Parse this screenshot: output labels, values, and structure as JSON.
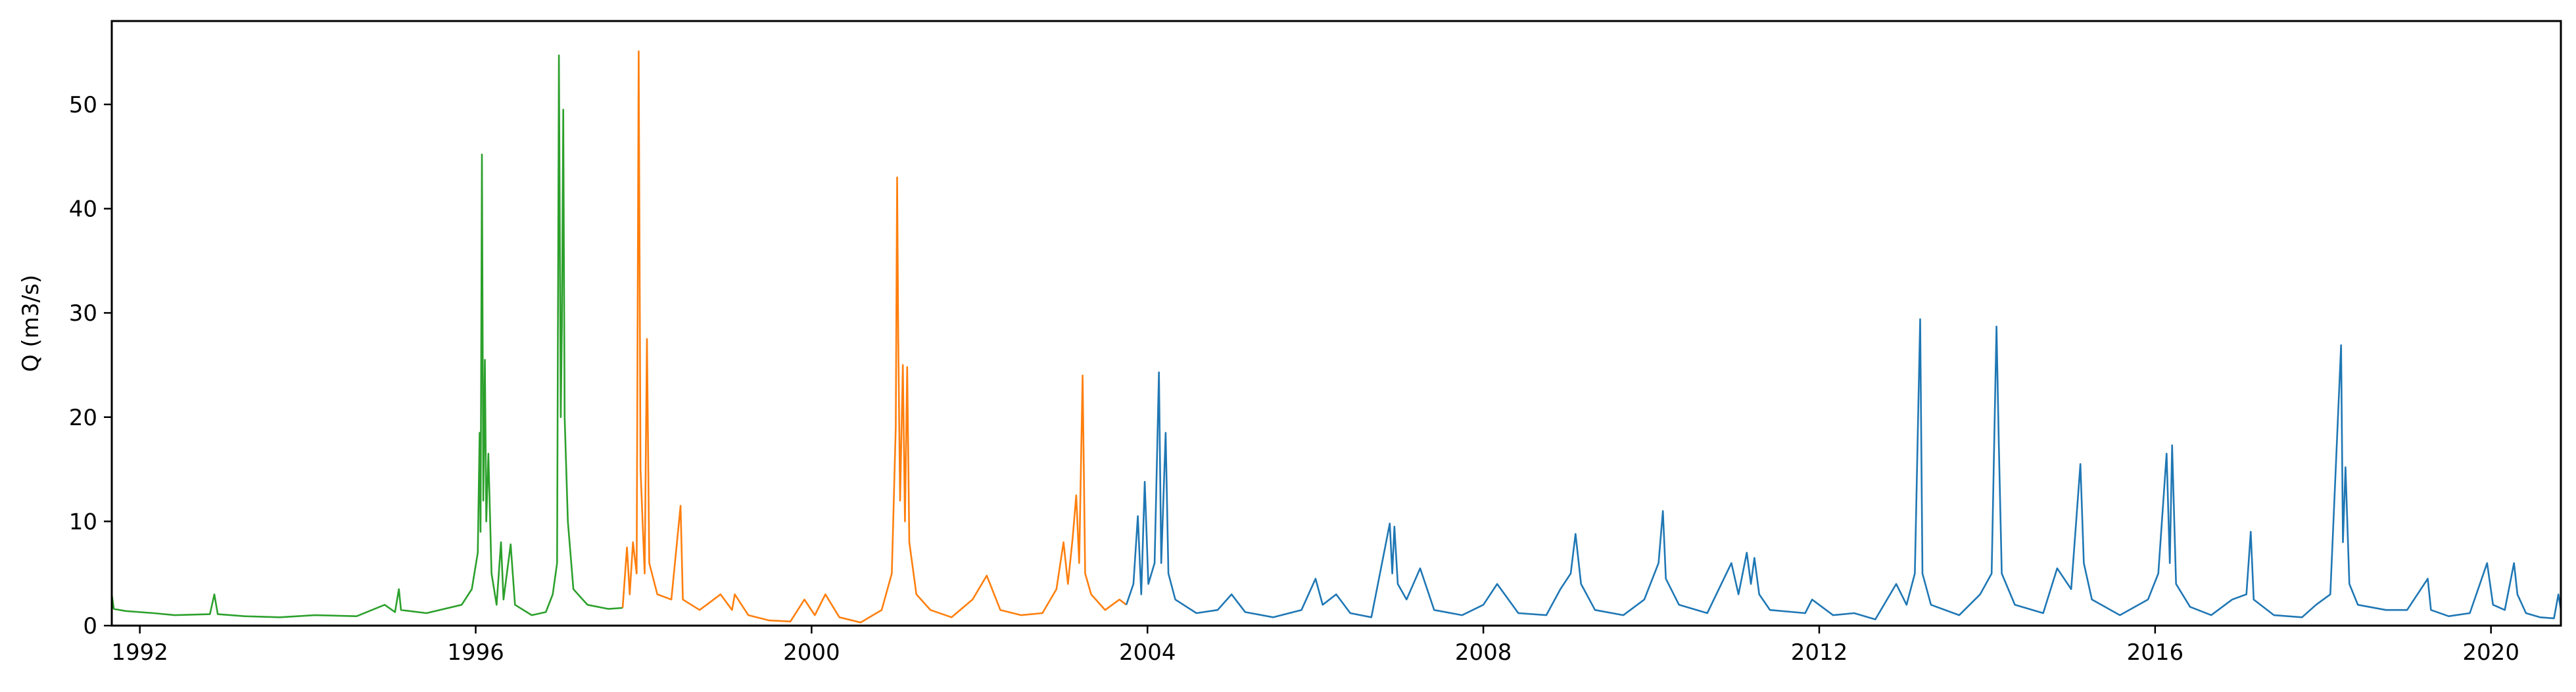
{
  "chart_data": {
    "type": "line",
    "title": "",
    "xlabel": "",
    "ylabel": "Q (m3/s)",
    "x_axis_type": "date",
    "xlim": [
      "1991-09-01",
      "2020-10-31"
    ],
    "ylim": [
      0,
      58
    ],
    "xticks": [
      "1992",
      "1996",
      "2000",
      "2004",
      "2008",
      "2012",
      "2016",
      "2020"
    ],
    "yticks": [
      0,
      10,
      20,
      30,
      40,
      50
    ],
    "grid": false,
    "legend": "none",
    "series": [
      {
        "color": "#2ca02c",
        "points": [
          [
            "1991-09-01",
            3.0
          ],
          [
            "1991-09-10",
            1.6
          ],
          [
            "1991-11-01",
            1.4
          ],
          [
            "1992-03-01",
            1.2
          ],
          [
            "1992-06-01",
            1.0
          ],
          [
            "1992-11-01",
            1.1
          ],
          [
            "1992-11-20",
            3.0
          ],
          [
            "1992-12-05",
            1.1
          ],
          [
            "1993-04-01",
            0.9
          ],
          [
            "1993-09-01",
            0.8
          ],
          [
            "1994-02-01",
            1.0
          ],
          [
            "1994-08-01",
            0.9
          ],
          [
            "1994-12-01",
            2.0
          ],
          [
            "1995-01-15",
            1.3
          ],
          [
            "1995-02-01",
            3.5
          ],
          [
            "1995-02-10",
            1.5
          ],
          [
            "1995-06-01",
            1.2
          ],
          [
            "1995-11-01",
            2.0
          ],
          [
            "1995-12-15",
            3.5
          ],
          [
            "1996-01-10",
            7.0
          ],
          [
            "1996-01-18",
            18.5
          ],
          [
            "1996-01-22",
            9.0
          ],
          [
            "1996-01-28",
            45.2
          ],
          [
            "1996-02-03",
            12.0
          ],
          [
            "1996-02-10",
            25.5
          ],
          [
            "1996-02-16",
            10.0
          ],
          [
            "1996-02-25",
            16.5
          ],
          [
            "1996-03-10",
            5.0
          ],
          [
            "1996-04-01",
            2.0
          ],
          [
            "1996-04-20",
            8.0
          ],
          [
            "1996-05-01",
            2.5
          ],
          [
            "1996-06-01",
            7.8
          ],
          [
            "1996-06-20",
            2.0
          ],
          [
            "1996-09-01",
            1.0
          ],
          [
            "1996-11-01",
            1.3
          ],
          [
            "1996-12-01",
            3.0
          ],
          [
            "1996-12-20",
            6.0
          ],
          [
            "1996-12-28",
            54.7
          ],
          [
            "1997-01-05",
            20.0
          ],
          [
            "1997-01-10",
            28.5
          ],
          [
            "1997-01-16",
            49.5
          ],
          [
            "1997-01-22",
            20.0
          ],
          [
            "1997-02-05",
            10.0
          ],
          [
            "1997-03-01",
            3.5
          ],
          [
            "1997-05-01",
            2.0
          ],
          [
            "1997-08-01",
            1.6
          ],
          [
            "1997-10-01",
            1.7
          ]
        ]
      },
      {
        "color": "#ff7f0e",
        "points": [
          [
            "1997-10-01",
            1.7
          ],
          [
            "1997-10-20",
            7.5
          ],
          [
            "1997-11-01",
            3.0
          ],
          [
            "1997-11-15",
            8.0
          ],
          [
            "1997-12-01",
            5.0
          ],
          [
            "1997-12-10",
            55.1
          ],
          [
            "1997-12-18",
            15.0
          ],
          [
            "1998-01-05",
            5.0
          ],
          [
            "1998-01-15",
            27.5
          ],
          [
            "1998-01-25",
            6.0
          ],
          [
            "1998-03-01",
            3.0
          ],
          [
            "1998-05-01",
            2.5
          ],
          [
            "1998-06-10",
            11.5
          ],
          [
            "1998-06-20",
            2.5
          ],
          [
            "1998-09-01",
            1.5
          ],
          [
            "1998-12-01",
            3.0
          ],
          [
            "1999-01-20",
            1.5
          ],
          [
            "1999-02-01",
            3.0
          ],
          [
            "1999-04-01",
            1.0
          ],
          [
            "1999-07-01",
            0.5
          ],
          [
            "1999-10-01",
            0.4
          ],
          [
            "1999-12-01",
            2.5
          ],
          [
            "2000-01-15",
            1.0
          ],
          [
            "2000-03-01",
            3.0
          ],
          [
            "2000-05-01",
            0.8
          ],
          [
            "2000-08-01",
            0.3
          ],
          [
            "2000-11-01",
            1.5
          ],
          [
            "2000-12-15",
            5.0
          ],
          [
            "2001-01-01",
            19.0
          ],
          [
            "2001-01-07",
            43.0
          ],
          [
            "2001-01-12",
            27.5
          ],
          [
            "2001-01-20",
            12.0
          ],
          [
            "2001-02-01",
            25.0
          ],
          [
            "2001-02-10",
            10.0
          ],
          [
            "2001-02-20",
            24.8
          ],
          [
            "2001-03-01",
            8.0
          ],
          [
            "2001-04-01",
            3.0
          ],
          [
            "2001-06-01",
            1.5
          ],
          [
            "2001-09-01",
            0.8
          ],
          [
            "2001-12-01",
            2.5
          ],
          [
            "2002-02-01",
            4.8
          ],
          [
            "2002-04-01",
            1.5
          ],
          [
            "2002-07-01",
            1.0
          ],
          [
            "2002-10-01",
            1.2
          ],
          [
            "2002-12-01",
            3.5
          ],
          [
            "2003-01-01",
            8.0
          ],
          [
            "2003-01-20",
            4.0
          ],
          [
            "2003-02-10",
            8.5
          ],
          [
            "2003-02-25",
            12.5
          ],
          [
            "2003-03-10",
            6.0
          ],
          [
            "2003-03-25",
            24.0
          ],
          [
            "2003-04-05",
            5.0
          ],
          [
            "2003-05-01",
            3.0
          ],
          [
            "2003-07-01",
            1.5
          ],
          [
            "2003-09-01",
            2.5
          ],
          [
            "2003-10-01",
            2.0
          ]
        ]
      },
      {
        "color": "#1f77b4",
        "points": [
          [
            "2003-10-01",
            2.0
          ],
          [
            "2003-11-01",
            4.0
          ],
          [
            "2003-11-20",
            10.5
          ],
          [
            "2003-12-05",
            3.0
          ],
          [
            "2003-12-20",
            13.8
          ],
          [
            "2004-01-05",
            4.0
          ],
          [
            "2004-02-01",
            6.0
          ],
          [
            "2004-02-20",
            24.3
          ],
          [
            "2004-03-01",
            6.0
          ],
          [
            "2004-03-20",
            18.5
          ],
          [
            "2004-04-01",
            5.0
          ],
          [
            "2004-05-01",
            2.5
          ],
          [
            "2004-08-01",
            1.2
          ],
          [
            "2004-11-01",
            1.5
          ],
          [
            "2005-01-01",
            3.0
          ],
          [
            "2005-03-01",
            1.3
          ],
          [
            "2005-07-01",
            0.8
          ],
          [
            "2005-11-01",
            1.5
          ],
          [
            "2006-01-01",
            4.5
          ],
          [
            "2006-02-01",
            2.0
          ],
          [
            "2006-04-01",
            3.0
          ],
          [
            "2006-06-01",
            1.2
          ],
          [
            "2006-09-01",
            0.8
          ],
          [
            "2006-11-20",
            9.8
          ],
          [
            "2006-12-01",
            5.0
          ],
          [
            "2006-12-10",
            9.5
          ],
          [
            "2006-12-25",
            4.0
          ],
          [
            "2007-02-01",
            2.5
          ],
          [
            "2007-04-01",
            5.5
          ],
          [
            "2007-06-01",
            1.5
          ],
          [
            "2007-10-01",
            1.0
          ],
          [
            "2008-01-01",
            2.0
          ],
          [
            "2008-03-01",
            4.0
          ],
          [
            "2008-06-01",
            1.2
          ],
          [
            "2008-10-01",
            1.0
          ],
          [
            "2008-12-01",
            3.5
          ],
          [
            "2009-01-15",
            5.0
          ],
          [
            "2009-02-05",
            8.8
          ],
          [
            "2009-03-01",
            4.0
          ],
          [
            "2009-05-01",
            1.5
          ],
          [
            "2009-09-01",
            1.0
          ],
          [
            "2009-12-01",
            2.5
          ],
          [
            "2010-02-01",
            6.0
          ],
          [
            "2010-02-20",
            11.0
          ],
          [
            "2010-03-05",
            4.5
          ],
          [
            "2010-05-01",
            2.0
          ],
          [
            "2010-09-01",
            1.2
          ],
          [
            "2010-12-15",
            6.0
          ],
          [
            "2011-01-15",
            3.0
          ],
          [
            "2011-02-20",
            7.0
          ],
          [
            "2011-03-10",
            4.0
          ],
          [
            "2011-03-25",
            6.5
          ],
          [
            "2011-04-15",
            3.0
          ],
          [
            "2011-06-01",
            1.5
          ],
          [
            "2011-11-01",
            1.2
          ],
          [
            "2011-12-01",
            2.5
          ],
          [
            "2012-03-01",
            1.0
          ],
          [
            "2012-06-01",
            1.2
          ],
          [
            "2012-09-01",
            0.6
          ],
          [
            "2012-12-01",
            4.0
          ],
          [
            "2013-01-15",
            2.0
          ],
          [
            "2013-02-20",
            5.0
          ],
          [
            "2013-03-15",
            29.4
          ],
          [
            "2013-03-25",
            5.0
          ],
          [
            "2013-05-01",
            2.0
          ],
          [
            "2013-09-01",
            1.0
          ],
          [
            "2013-12-01",
            3.0
          ],
          [
            "2014-01-20",
            5.0
          ],
          [
            "2014-02-10",
            28.7
          ],
          [
            "2014-02-20",
            17.5
          ],
          [
            "2014-03-05",
            5.0
          ],
          [
            "2014-05-01",
            2.0
          ],
          [
            "2014-09-01",
            1.2
          ],
          [
            "2014-11-01",
            5.5
          ],
          [
            "2015-01-01",
            3.5
          ],
          [
            "2015-02-10",
            15.5
          ],
          [
            "2015-02-25",
            6.0
          ],
          [
            "2015-04-01",
            2.5
          ],
          [
            "2015-08-01",
            1.0
          ],
          [
            "2015-12-01",
            2.5
          ],
          [
            "2016-01-15",
            5.0
          ],
          [
            "2016-02-20",
            16.5
          ],
          [
            "2016-03-05",
            6.0
          ],
          [
            "2016-03-15",
            17.3
          ],
          [
            "2016-04-01",
            4.0
          ],
          [
            "2016-06-01",
            1.8
          ],
          [
            "2016-09-01",
            1.0
          ],
          [
            "2016-12-01",
            2.5
          ],
          [
            "2017-02-01",
            3.0
          ],
          [
            "2017-02-20",
            9.0
          ],
          [
            "2017-03-05",
            2.5
          ],
          [
            "2017-06-01",
            1.0
          ],
          [
            "2017-10-01",
            0.8
          ],
          [
            "2017-12-01",
            2.0
          ],
          [
            "2018-02-01",
            3.0
          ],
          [
            "2018-03-20",
            26.9
          ],
          [
            "2018-03-28",
            8.0
          ],
          [
            "2018-04-08",
            15.2
          ],
          [
            "2018-04-25",
            4.0
          ],
          [
            "2018-06-01",
            2.0
          ],
          [
            "2018-10-01",
            1.5
          ],
          [
            "2019-01-01",
            1.5
          ],
          [
            "2019-04-01",
            4.5
          ],
          [
            "2019-04-15",
            1.5
          ],
          [
            "2019-07-01",
            0.9
          ],
          [
            "2019-10-01",
            1.2
          ],
          [
            "2019-12-15",
            6.0
          ],
          [
            "2020-01-10",
            2.0
          ],
          [
            "2020-03-01",
            1.5
          ],
          [
            "2020-04-10",
            6.0
          ],
          [
            "2020-04-25",
            3.0
          ],
          [
            "2020-06-01",
            1.2
          ],
          [
            "2020-08-01",
            0.8
          ],
          [
            "2020-10-01",
            0.7
          ],
          [
            "2020-10-20",
            3.0
          ],
          [
            "2020-10-31",
            1.5
          ]
        ]
      }
    ]
  }
}
